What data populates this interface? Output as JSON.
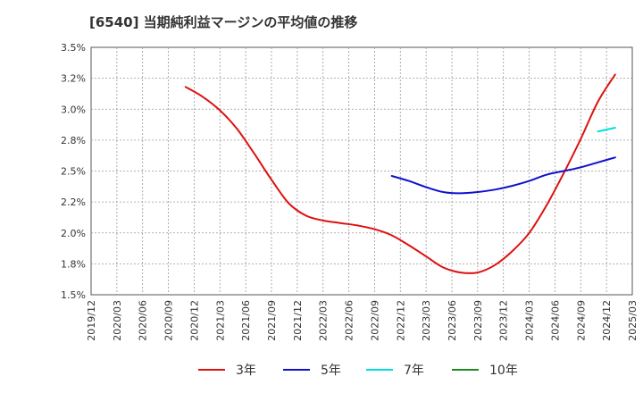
{
  "chart_data": {
    "type": "line",
    "title": "[6540]  当期純利益マージンの平均値の推移",
    "xlabel": "",
    "ylabel": "",
    "ylim": [
      1.5,
      3.5
    ],
    "y_ticks": [
      "3.5%",
      "3.2%",
      "3.0%",
      "2.8%",
      "2.5%",
      "2.2%",
      "2.0%",
      "1.8%",
      "1.5%"
    ],
    "x_ticks": [
      "2019/12",
      "2020/03",
      "2020/06",
      "2020/09",
      "2020/12",
      "2021/03",
      "2021/06",
      "2021/09",
      "2021/12",
      "2022/03",
      "2022/06",
      "2022/09",
      "2022/12",
      "2023/03",
      "2023/06",
      "2023/09",
      "2023/12",
      "2024/03",
      "2024/06",
      "2024/09",
      "2024/12",
      "2025/03"
    ],
    "grid": true,
    "legend_position": "bottom",
    "series": [
      {
        "name": "3年",
        "color": "#dd1111",
        "points": [
          [
            "2020/11",
            3.18
          ],
          [
            "2021/01",
            3.1
          ],
          [
            "2021/03",
            2.99
          ],
          [
            "2021/05",
            2.84
          ],
          [
            "2021/07",
            2.64
          ],
          [
            "2021/09",
            2.43
          ],
          [
            "2021/11",
            2.24
          ],
          [
            "2022/01",
            2.14
          ],
          [
            "2022/03",
            2.1
          ],
          [
            "2022/05",
            2.08
          ],
          [
            "2022/07",
            2.06
          ],
          [
            "2022/09",
            2.03
          ],
          [
            "2022/11",
            1.98
          ],
          [
            "2023/01",
            1.9
          ],
          [
            "2023/03",
            1.81
          ],
          [
            "2023/05",
            1.72
          ],
          [
            "2023/07",
            1.68
          ],
          [
            "2023/09",
            1.68
          ],
          [
            "2023/11",
            1.74
          ],
          [
            "2024/01",
            1.85
          ],
          [
            "2024/03",
            2.0
          ],
          [
            "2024/05",
            2.22
          ],
          [
            "2024/07",
            2.48
          ],
          [
            "2024/09",
            2.76
          ],
          [
            "2024/11",
            3.06
          ],
          [
            "2025/01",
            3.28
          ]
        ]
      },
      {
        "name": "5年",
        "color": "#1111cc",
        "points": [
          [
            "2022/11",
            2.46
          ],
          [
            "2023/01",
            2.42
          ],
          [
            "2023/03",
            2.37
          ],
          [
            "2023/05",
            2.33
          ],
          [
            "2023/07",
            2.32
          ],
          [
            "2023/09",
            2.33
          ],
          [
            "2023/11",
            2.35
          ],
          [
            "2024/01",
            2.38
          ],
          [
            "2024/03",
            2.42
          ],
          [
            "2024/05",
            2.47
          ],
          [
            "2024/07",
            2.5
          ],
          [
            "2024/09",
            2.53
          ],
          [
            "2024/11",
            2.57
          ],
          [
            "2025/01",
            2.61
          ]
        ]
      },
      {
        "name": "7年",
        "color": "#00dddd",
        "points": [
          [
            "2024/11",
            2.82
          ],
          [
            "2025/01",
            2.85
          ]
        ]
      },
      {
        "name": "10年",
        "color": "#228822",
        "points": []
      }
    ]
  }
}
